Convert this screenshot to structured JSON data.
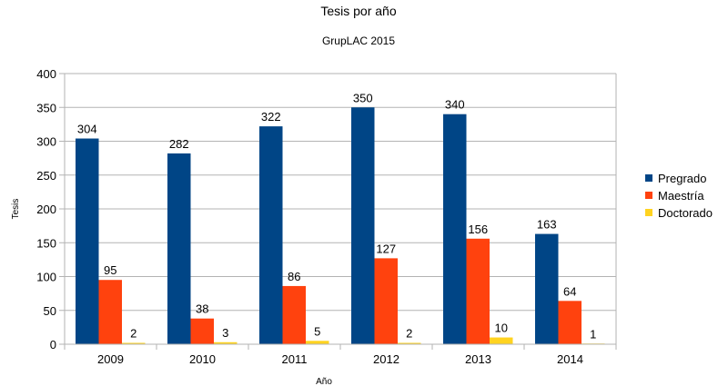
{
  "chart_data": {
    "type": "bar",
    "title": "Tesis por año",
    "subtitle": "GrupLAC 2015",
    "xlabel": "Año",
    "ylabel": "Tesis",
    "categories": [
      "2009",
      "2010",
      "2011",
      "2012",
      "2013",
      "2014"
    ],
    "series": [
      {
        "name": "Pregrado",
        "color": "#004586",
        "values": [
          304,
          282,
          322,
          350,
          340,
          163
        ]
      },
      {
        "name": "Maestría",
        "color": "#ff420e",
        "values": [
          95,
          38,
          86,
          127,
          156,
          64
        ]
      },
      {
        "name": "Doctorado",
        "color": "#ffd320",
        "values": [
          2,
          3,
          5,
          2,
          10,
          1
        ]
      }
    ],
    "ylim": [
      0,
      400
    ],
    "yticks": [
      0,
      50,
      100,
      150,
      200,
      250,
      300,
      350,
      400
    ],
    "grid": true,
    "legend": "right"
  }
}
